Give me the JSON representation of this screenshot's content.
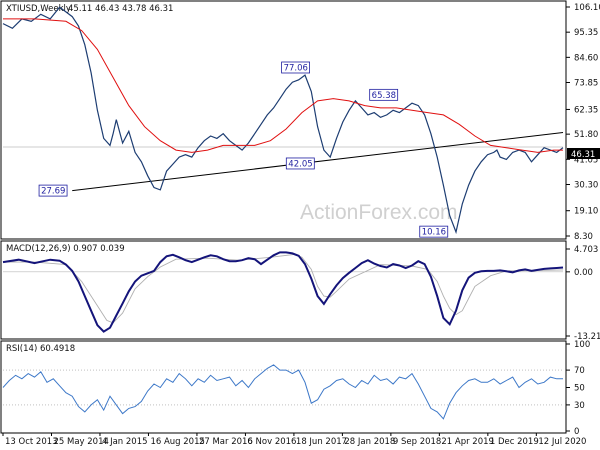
{
  "watermark": "ActionForex.com",
  "chart_data": [
    {
      "type": "line",
      "title": "XTIUSD,Weekly",
      "ohlc_text": "45.11 46.43 43.78 46.31",
      "price_ticks": [
        106.1,
        95.35,
        84.6,
        73.85,
        62.35,
        51.8,
        41.05,
        30.3,
        19.1,
        8.3
      ],
      "ylim": [
        8.3,
        106.1
      ],
      "last_value": "46.31",
      "x_ticks": [
        "13 Oct 2013",
        "25 May 2014",
        "4 Jan 2015",
        "16 Aug 2015",
        "27 Mar 2016",
        "6 Nov 2016",
        "18 Jun 2017",
        "28 Jan 2018",
        "9 Sep 2018",
        "21 Apr 2019",
        "1 Dec 2019",
        "12 Jul 2020"
      ],
      "x_index_range": [
        0,
        356
      ],
      "price_series": {
        "x": [
          0,
          6,
          12,
          18,
          24,
          30,
          36,
          40,
          44,
          48,
          52,
          56,
          60,
          64,
          68,
          70,
          72,
          76,
          80,
          84,
          88,
          92,
          96,
          100,
          104,
          108,
          112,
          116,
          120,
          124,
          128,
          132,
          136,
          140,
          144,
          148,
          152,
          156,
          160,
          164,
          168,
          172,
          176,
          180,
          184,
          188,
          192,
          196,
          200,
          204,
          208,
          212,
          216,
          220,
          224,
          228,
          232,
          236,
          240,
          244,
          248,
          252,
          256,
          260,
          264,
          268,
          272,
          276,
          280,
          284,
          288,
          292,
          296,
          300,
          304,
          308,
          312,
          314,
          316,
          320,
          324,
          328,
          332,
          336,
          340,
          344,
          348,
          352,
          356
        ],
        "y": [
          99,
          97,
          101,
          100,
          103,
          101,
          106,
          104,
          102,
          98,
          90,
          78,
          62,
          50,
          47,
          52,
          58,
          48,
          53,
          44,
          40,
          34,
          29,
          28,
          36,
          39,
          42,
          43,
          42,
          46,
          49,
          51,
          50,
          52,
          49,
          47,
          45,
          48,
          52,
          56,
          60,
          63,
          67,
          71,
          74,
          75,
          77,
          70,
          55,
          45,
          42,
          50,
          57,
          62,
          66,
          63,
          60,
          61,
          59,
          60,
          62,
          61,
          63,
          65,
          64,
          60,
          52,
          42,
          30,
          17,
          10,
          22,
          30,
          36,
          40,
          43,
          44,
          45,
          42,
          41,
          44,
          45,
          44,
          40,
          43,
          46,
          45,
          44,
          46
        ]
      },
      "ma_series": {
        "name": "",
        "x": [
          0,
          20,
          40,
          50,
          60,
          70,
          80,
          90,
          100,
          110,
          120,
          130,
          140,
          150,
          160,
          170,
          180,
          190,
          200,
          210,
          220,
          230,
          240,
          250,
          260,
          270,
          280,
          290,
          300,
          310,
          320,
          330,
          340,
          350,
          356
        ],
        "y": [
          101,
          101,
          100,
          96,
          88,
          76,
          64,
          55,
          49,
          45,
          44,
          45,
          47,
          47,
          47,
          49,
          54,
          61,
          66,
          67,
          66,
          64,
          63,
          63,
          62,
          61,
          60,
          56,
          51,
          47,
          46,
          45,
          44,
          45,
          45
        ]
      },
      "trendline": {
        "x": [
          44,
          356
        ],
        "y": [
          27.7,
          52.5
        ]
      },
      "annotations": [
        {
          "text": "27.69",
          "x": 42,
          "y": 27.69,
          "pos": "left"
        },
        {
          "text": "77.06",
          "x": 186,
          "y": 77.06,
          "pos": "above"
        },
        {
          "text": "42.05",
          "x": 189,
          "y": 42.05,
          "pos": "below"
        },
        {
          "text": "65.38",
          "x": 242,
          "y": 65.38,
          "pos": "above"
        },
        {
          "text": "10.16",
          "x": 284,
          "y": 10.16,
          "pos": "left"
        }
      ],
      "grid": false
    },
    {
      "type": "line",
      "title": "MACD(12,26,9) 0.907 0.039",
      "ticks": [
        {
          "v": 4.703,
          "label": "4.703"
        },
        {
          "v": 0,
          "label": "0.00"
        },
        {
          "v": -13.215,
          "label": "-13.215"
        }
      ],
      "ylim": [
        -13.215,
        4.703
      ],
      "hline": 0,
      "macd_series": {
        "x": [
          0,
          10,
          20,
          30,
          36,
          40,
          44,
          48,
          52,
          56,
          60,
          64,
          68,
          72,
          76,
          80,
          84,
          88,
          92,
          96,
          100,
          104,
          108,
          112,
          116,
          120,
          124,
          128,
          132,
          136,
          140,
          144,
          148,
          152,
          156,
          160,
          164,
          168,
          172,
          176,
          180,
          184,
          188,
          192,
          196,
          200,
          204,
          208,
          212,
          216,
          220,
          224,
          228,
          232,
          236,
          240,
          244,
          248,
          252,
          256,
          260,
          264,
          268,
          272,
          276,
          280,
          284,
          288,
          292,
          296,
          300,
          304,
          308,
          312,
          316,
          320,
          324,
          328,
          332,
          336,
          340,
          344,
          348,
          352,
          356
        ],
        "y": [
          2,
          2.5,
          1.8,
          2.5,
          2.3,
          1.5,
          0.2,
          -2,
          -5,
          -8,
          -11,
          -12.3,
          -11.5,
          -9,
          -6.5,
          -4,
          -2,
          -0.8,
          -0.3,
          0.2,
          2,
          3.2,
          3.5,
          3,
          2.4,
          2,
          2.5,
          3,
          3.4,
          3.2,
          2.6,
          2.2,
          2.2,
          2.4,
          2.8,
          2.6,
          1.6,
          2.5,
          3.4,
          4,
          4,
          3.8,
          3.3,
          1.6,
          -1.4,
          -5,
          -6.6,
          -4.6,
          -2.8,
          -1.3,
          -0.2,
          0.8,
          1.8,
          2.4,
          1.7,
          1.2,
          0.9,
          1.6,
          1.3,
          0.8,
          1.3,
          2.2,
          1.6,
          -1,
          -5,
          -9.5,
          -10.8,
          -8,
          -3.8,
          -1.2,
          -0.2,
          0.1,
          0.2,
          0.2,
          0.3,
          0.1,
          -0.1,
          0.3,
          0.5,
          0.2,
          0.4,
          0.6,
          0.7,
          0.8,
          0.9
        ]
      },
      "signal_series": {
        "x": [
          0,
          20,
          40,
          50,
          60,
          66,
          70,
          76,
          84,
          92,
          100,
          110,
          130,
          150,
          170,
          185,
          190,
          196,
          200,
          204,
          208,
          212,
          220,
          240,
          260,
          270,
          276,
          280,
          284,
          288,
          292,
          296,
          300,
          310,
          320,
          340,
          356
        ],
        "y": [
          2,
          2,
          1.5,
          -2,
          -7,
          -10,
          -10.5,
          -8.5,
          -3.5,
          -1,
          1,
          2.6,
          2.8,
          2.4,
          3,
          3.6,
          3,
          0.5,
          -3,
          -5,
          -5.2,
          -4,
          -1.5,
          1.5,
          1.2,
          0.5,
          -2,
          -5,
          -7.5,
          -8.8,
          -8,
          -5.5,
          -3,
          -0.8,
          0.2,
          0.3,
          0.4
        ]
      }
    },
    {
      "type": "line",
      "title": "RSI(14) 60.4918",
      "ticks": [
        100,
        70,
        50,
        30,
        0
      ],
      "ylim": [
        0,
        100
      ],
      "rsi_series": {
        "x": [
          0,
          4,
          8,
          12,
          16,
          20,
          24,
          28,
          32,
          36,
          40,
          44,
          48,
          52,
          56,
          60,
          64,
          68,
          72,
          76,
          80,
          84,
          88,
          92,
          96,
          100,
          104,
          108,
          112,
          116,
          120,
          124,
          128,
          132,
          136,
          140,
          144,
          148,
          152,
          156,
          160,
          164,
          168,
          172,
          176,
          180,
          184,
          188,
          192,
          196,
          200,
          204,
          208,
          212,
          216,
          220,
          224,
          228,
          232,
          236,
          240,
          244,
          248,
          252,
          256,
          260,
          264,
          268,
          272,
          276,
          280,
          284,
          288,
          292,
          296,
          300,
          304,
          308,
          312,
          316,
          320,
          324,
          328,
          332,
          336,
          340,
          344,
          348,
          352,
          356
        ],
        "y": [
          50,
          58,
          64,
          60,
          66,
          62,
          68,
          56,
          60,
          52,
          44,
          40,
          28,
          22,
          30,
          36,
          24,
          40,
          30,
          20,
          26,
          28,
          34,
          46,
          54,
          50,
          60,
          56,
          66,
          60,
          52,
          60,
          56,
          64,
          58,
          60,
          62,
          52,
          58,
          50,
          60,
          66,
          72,
          76,
          70,
          70,
          66,
          70,
          56,
          32,
          36,
          48,
          52,
          58,
          60,
          54,
          50,
          58,
          54,
          64,
          58,
          60,
          54,
          62,
          60,
          66,
          54,
          40,
          26,
          22,
          14,
          32,
          44,
          52,
          58,
          60,
          56,
          56,
          60,
          54,
          58,
          62,
          50,
          56,
          60,
          54,
          56,
          62,
          60,
          60
        ]
      }
    }
  ]
}
